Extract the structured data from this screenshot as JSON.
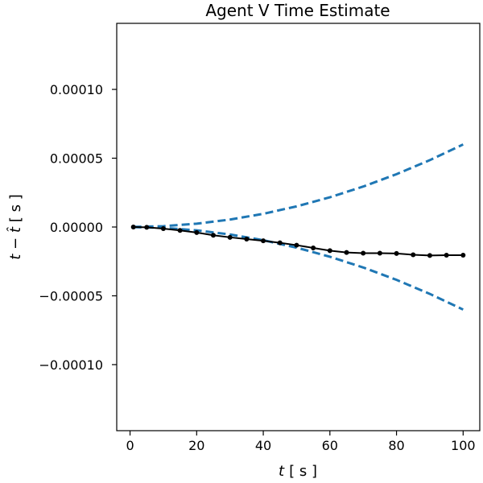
{
  "chart_data": {
    "type": "line",
    "title": "Agent V Time Estimate",
    "xlabel_var": "t",
    "xlabel_unit": "[ s ]",
    "ylabel_var": "t − t̂",
    "ylabel_unit": "[ s ]",
    "xlim": [
      -4,
      105
    ],
    "ylim": [
      -0.000148,
      0.000148
    ],
    "x_ticks": [
      0,
      20,
      40,
      60,
      80,
      100
    ],
    "x_tick_labels": [
      "0",
      "20",
      "40",
      "60",
      "80",
      "100"
    ],
    "y_ticks": [
      0.0001,
      5e-05,
      0,
      -5e-05,
      -0.0001
    ],
    "y_tick_labels": [
      "0.00010",
      "0.00005",
      "0.00000",
      "−0.00005",
      "−0.00010"
    ],
    "grid": false,
    "series": [
      {
        "role": "upper-bound",
        "style": "dashed",
        "color": "#1f77b4",
        "x": [
          1,
          10,
          20,
          30,
          40,
          50,
          60,
          70,
          80,
          90,
          100
        ],
        "y": [
          1e-07,
          6e-07,
          2.4e-06,
          5.4e-06,
          9.6e-06,
          1.5e-05,
          2.16e-05,
          2.94e-05,
          3.84e-05,
          4.86e-05,
          6e-05
        ]
      },
      {
        "role": "lower-bound",
        "style": "dashed",
        "color": "#1f77b4",
        "x": [
          1,
          10,
          20,
          30,
          40,
          50,
          60,
          70,
          80,
          90,
          100
        ],
        "y": [
          -1e-07,
          -6e-07,
          -2.4e-06,
          -5.4e-06,
          -9.6e-06,
          -1.5e-05,
          -2.16e-05,
          -2.94e-05,
          -3.84e-05,
          -4.86e-05,
          -6e-05
        ]
      },
      {
        "role": "estimate",
        "style": "line-with-markers",
        "color": "#000000",
        "x": [
          1,
          5,
          10,
          15,
          20,
          25,
          30,
          35,
          40,
          45,
          50,
          55,
          60,
          65,
          70,
          75,
          80,
          85,
          90,
          95,
          100
        ],
        "y": [
          0,
          -2e-07,
          -1.2e-06,
          -2.5e-06,
          -4e-06,
          -6e-06,
          -7.5e-06,
          -8.8e-06,
          -1e-05,
          -1.15e-05,
          -1.32e-05,
          -1.52e-05,
          -1.72e-05,
          -1.85e-05,
          -1.9e-05,
          -1.9e-05,
          -1.92e-05,
          -2.02e-05,
          -2.07e-05,
          -2.05e-05,
          -2.05e-05
        ]
      }
    ]
  }
}
